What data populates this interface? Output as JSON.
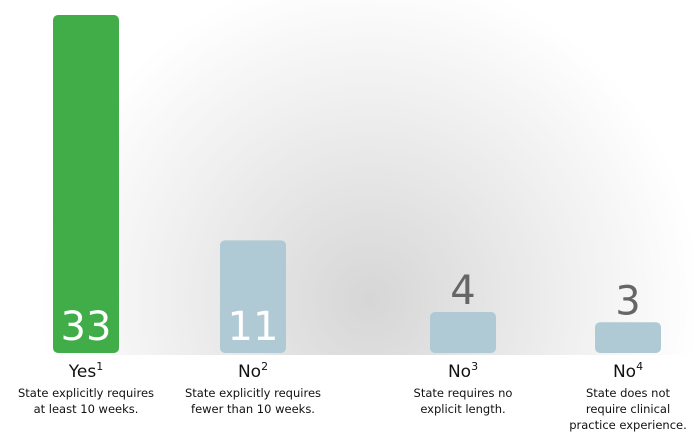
{
  "chart_data": {
    "type": "bar",
    "categories": [
      "Yes",
      "No",
      "No",
      "No"
    ],
    "footnotes": [
      "1",
      "2",
      "3",
      "4"
    ],
    "descriptions": [
      [
        "State explicitly requires",
        "at least 10 weeks."
      ],
      [
        "State explicitly requires",
        "fewer than 10 weeks."
      ],
      [
        "State requires no",
        "explicit length."
      ],
      [
        "State does not",
        "require clinical",
        "practice experience."
      ]
    ],
    "values": [
      33,
      11,
      4,
      3
    ],
    "colors": [
      "#40ad49",
      "#afc9d5",
      "#afc9d5",
      "#afc9d5"
    ]
  }
}
